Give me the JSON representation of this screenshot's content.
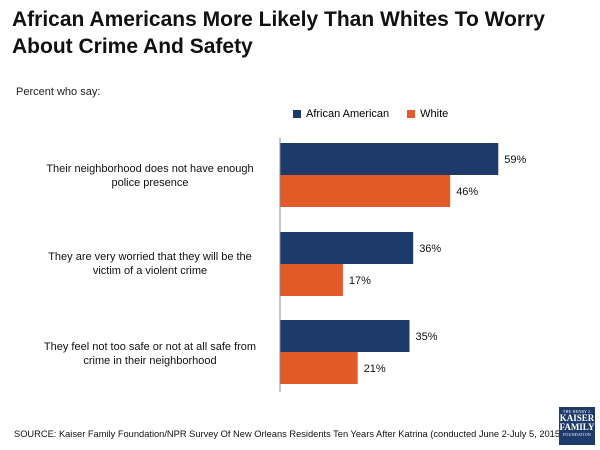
{
  "chart_data": {
    "type": "bar",
    "orientation": "horizontal",
    "title": "African Americans More Likely Than Whites To Worry About Crime And Safety",
    "subtitle": "Percent who say:",
    "categories": [
      [
        "Their neighborhood does not have enough",
        "police presence"
      ],
      [
        "They are very worried that they will be the",
        "victim of a violent crime"
      ],
      [
        "They feel not too safe or not at all safe from",
        "crime in their neighborhood"
      ]
    ],
    "series": [
      {
        "name": "African American",
        "color": "#1d3a6b",
        "values": [
          59,
          36,
          35
        ],
        "labels": [
          "59%",
          "36%",
          "35%"
        ]
      },
      {
        "name": "White",
        "color": "#e15a28",
        "values": [
          46,
          17,
          21
        ],
        "labels": [
          "46%",
          "17%",
          "21%"
        ]
      }
    ],
    "xlim": [
      0,
      100
    ],
    "legend_position": "top-right",
    "source": "SOURCE: Kaiser Family Foundation/NPR Survey Of New Orleans Residents Ten Years After Katrina (conducted June 2-July 5, 2015)"
  },
  "logo": {
    "line1": "THE HENRY J.",
    "line2": "KAISER",
    "line3": "FAMILY",
    "line4": "FOUNDATION"
  }
}
